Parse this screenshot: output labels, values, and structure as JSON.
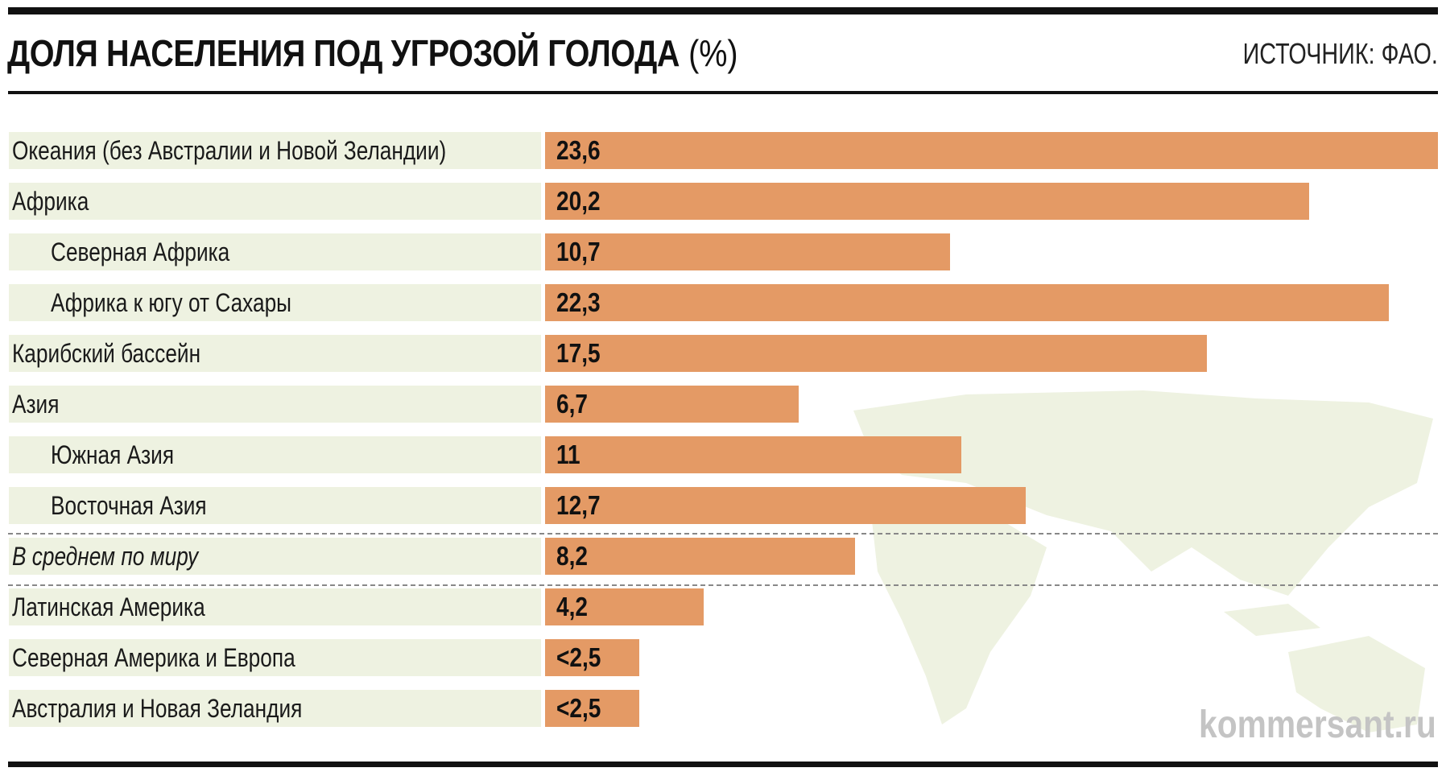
{
  "chart_data": {
    "type": "bar",
    "orientation": "horizontal",
    "title": "ДОЛЯ НАСЕЛЕНИЯ ПОД УГРОЗОЙ ГОЛОДА",
    "unit": "(%)",
    "source": "ИСТОЧНИК: ФАО.",
    "watermark": "kommersant.ru",
    "bar_color": "#e49a65",
    "label_bg_color": "#eef2e1",
    "categories": [
      {
        "label": "Океания (без Австралии и Новой Зеландии)",
        "value": 23.6,
        "display": "23,6",
        "indent": false
      },
      {
        "label": "Африка",
        "value": 20.2,
        "display": "20,2",
        "indent": false
      },
      {
        "label": "Северная Африка",
        "value": 10.7,
        "display": "10,7",
        "indent": true
      },
      {
        "label": "Африка к югу от Сахары",
        "value": 22.3,
        "display": "22,3",
        "indent": true
      },
      {
        "label": "Карибский бассейн",
        "value": 17.5,
        "display": "17,5",
        "indent": false
      },
      {
        "label": "Азия",
        "value": 6.7,
        "display": "6,7",
        "indent": false
      },
      {
        "label": "Южная Азия",
        "value": 11,
        "display": "11",
        "indent": true
      },
      {
        "label": "Восточная Азия",
        "value": 12.7,
        "display": "12,7",
        "indent": true
      },
      {
        "label": "В среднем по миру",
        "value": 8.2,
        "display": "8,2",
        "indent": false,
        "italic": true
      },
      {
        "label": "Латинская Америка",
        "value": 4.2,
        "display": "4,2",
        "indent": false
      },
      {
        "label": "Северная Америка и Европа",
        "value": 2.5,
        "display": "<2,5",
        "indent": false
      },
      {
        "label": "Австралия и Новая Зеландия",
        "value": 2.5,
        "display": "<2,5",
        "indent": false
      }
    ],
    "xlim": [
      0,
      23.6
    ]
  }
}
